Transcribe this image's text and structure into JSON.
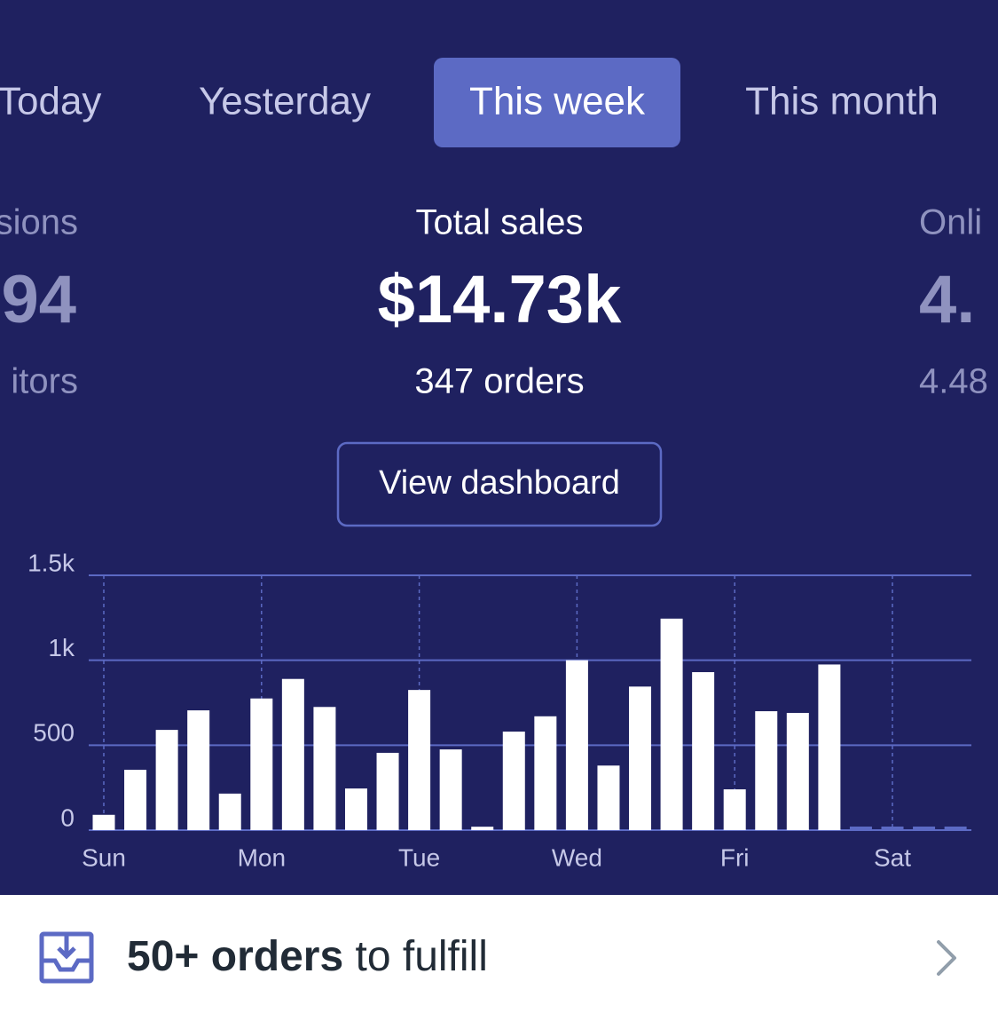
{
  "tabs": [
    "Today",
    "Yesterday",
    "This week",
    "This month"
  ],
  "stats": {
    "left": {
      "label": "sions",
      "value": "94",
      "sub": "itors"
    },
    "center": {
      "label": "Total sales",
      "value": "$14.73k",
      "sub": "347 orders"
    },
    "right": {
      "label": "Onli",
      "value": "4.",
      "sub": "4.48"
    }
  },
  "button": "View dashboard",
  "chart_data": {
    "type": "bar",
    "color": "#ffffff",
    "categories": [
      "Sun",
      null,
      null,
      null,
      null,
      "Mon",
      null,
      null,
      null,
      null,
      "Tue",
      null,
      null,
      null,
      null,
      "Wed",
      null,
      null,
      null,
      null,
      "Fri",
      null,
      null,
      null,
      null,
      "Sat",
      null,
      null
    ],
    "values": [
      90,
      355,
      590,
      705,
      215,
      775,
      890,
      725,
      245,
      455,
      825,
      475,
      20,
      580,
      670,
      1000,
      380,
      845,
      1245,
      930,
      240,
      700,
      690,
      975,
      null,
      null,
      null,
      null
    ],
    "ylim": [
      0,
      1500
    ],
    "yticks": [
      0,
      500,
      {
        "value": 1000,
        "label": "1k"
      },
      {
        "value": 1500,
        "label": "1.5k"
      }
    ],
    "grid": true
  },
  "orders_banner": {
    "bold": "50+ orders",
    "text": " to fulfill"
  }
}
